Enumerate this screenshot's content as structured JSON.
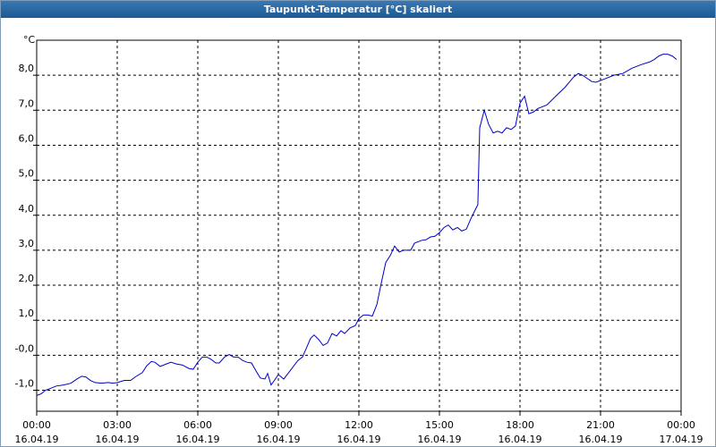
{
  "title": "Taupunkt-Temperatur [°C] skaliert",
  "chart_data": {
    "type": "line",
    "y_unit": "°C",
    "x": [
      0,
      0.17,
      0.33,
      0.5,
      0.73,
      1,
      1.27,
      1.5,
      1.67,
      1.83,
      2,
      2.17,
      2.4,
      2.67,
      2.83,
      3,
      3.27,
      3.5,
      3.67,
      3.93,
      4.1,
      4.27,
      4.4,
      4.6,
      4.83,
      5,
      5.2,
      5.43,
      5.67,
      5.83,
      6,
      6.17,
      6.33,
      6.5,
      6.67,
      6.8,
      7,
      7.17,
      7.33,
      7.5,
      7.67,
      7.83,
      8,
      8.17,
      8.33,
      8.5,
      8.6,
      8.73,
      8.87,
      9,
      9.2,
      9.33,
      9.53,
      9.73,
      9.9,
      10.07,
      10.2,
      10.33,
      10.5,
      10.67,
      10.83,
      11,
      11.17,
      11.33,
      11.47,
      11.67,
      11.87,
      12,
      12.17,
      12.33,
      12.5,
      12.67,
      12.83,
      13,
      13.17,
      13.33,
      13.5,
      13.67,
      13.93,
      14.07,
      14.33,
      14.5,
      14.67,
      14.83,
      15,
      15.17,
      15.33,
      15.5,
      15.67,
      15.83,
      16,
      16.17,
      16.33,
      16.43,
      16.5,
      16.67,
      16.83,
      17,
      17.17,
      17.33,
      17.5,
      17.67,
      17.83,
      18,
      18.17,
      18.33,
      18.5,
      18.67,
      19,
      19.33,
      19.67,
      20,
      20.17,
      20.33,
      20.67,
      20.83,
      21.17,
      21.5,
      21.83,
      22.17,
      22.5,
      22.83,
      23,
      23.17,
      23.33,
      23.5,
      23.67,
      23.83
    ],
    "series": [
      {
        "name": "Taupunkt-Temperatur",
        "color": "#0000c8",
        "values": [
          -1.15,
          -1.1,
          -1.0,
          -0.95,
          -0.88,
          -0.85,
          -0.8,
          -0.68,
          -0.6,
          -0.62,
          -0.72,
          -0.78,
          -0.8,
          -0.78,
          -0.8,
          -0.78,
          -0.72,
          -0.72,
          -0.62,
          -0.5,
          -0.3,
          -0.18,
          -0.2,
          -0.32,
          -0.25,
          -0.2,
          -0.25,
          -0.28,
          -0.38,
          -0.4,
          -0.2,
          -0.05,
          -0.05,
          -0.12,
          -0.22,
          -0.22,
          -0.05,
          0.02,
          -0.05,
          -0.05,
          -0.15,
          -0.2,
          -0.22,
          -0.45,
          -0.65,
          -0.68,
          -0.52,
          -0.85,
          -0.7,
          -0.55,
          -0.68,
          -0.55,
          -0.35,
          -0.15,
          -0.05,
          0.25,
          0.48,
          0.58,
          0.45,
          0.28,
          0.35,
          0.62,
          0.55,
          0.7,
          0.62,
          0.78,
          0.85,
          1.05,
          1.15,
          1.15,
          1.12,
          1.45,
          2.05,
          2.65,
          2.85,
          3.12,
          2.95,
          3.0,
          3.0,
          3.2,
          3.28,
          3.3,
          3.38,
          3.4,
          3.5,
          3.65,
          3.72,
          3.58,
          3.65,
          3.55,
          3.6,
          3.9,
          4.15,
          4.3,
          6.5,
          7.0,
          6.6,
          6.35,
          6.4,
          6.35,
          6.5,
          6.45,
          6.55,
          7.2,
          7.4,
          6.9,
          6.95,
          7.05,
          7.15,
          7.4,
          7.65,
          7.95,
          8.05,
          8.0,
          7.82,
          7.8,
          7.9,
          8.0,
          8.05,
          8.2,
          8.3,
          8.38,
          8.45,
          8.55,
          8.6,
          8.6,
          8.55,
          8.45
        ]
      }
    ],
    "xlim": [
      0,
      24
    ],
    "xticks": [
      {
        "value": 0,
        "label": "00:00",
        "date": "16.04.19"
      },
      {
        "value": 3,
        "label": "03:00",
        "date": "16.04.19"
      },
      {
        "value": 6,
        "label": "06:00",
        "date": "16.04.19"
      },
      {
        "value": 9,
        "label": "09:00",
        "date": "16.04.19"
      },
      {
        "value": 12,
        "label": "12:00",
        "date": "16.04.19"
      },
      {
        "value": 15,
        "label": "15:00",
        "date": "16.04.19"
      },
      {
        "value": 18,
        "label": "18:00",
        "date": "16.04.19"
      },
      {
        "value": 21,
        "label": "21:00",
        "date": "16.04.19"
      },
      {
        "value": 24,
        "label": "00:00",
        "date": "17.04.19"
      }
    ],
    "ylim": [
      -1.6,
      9.0
    ],
    "yticks": [
      {
        "value": -1,
        "label": "-1,0"
      },
      {
        "value": 0,
        "label": "-0,0"
      },
      {
        "value": 1,
        "label": "1,0"
      },
      {
        "value": 2,
        "label": "2,0"
      },
      {
        "value": 3,
        "label": "3,0"
      },
      {
        "value": 4,
        "label": "4,0"
      },
      {
        "value": 5,
        "label": "5,0"
      },
      {
        "value": 6,
        "label": "6,0"
      },
      {
        "value": 7,
        "label": "7,0"
      },
      {
        "value": 8,
        "label": "8,0"
      }
    ],
    "grid": true
  }
}
